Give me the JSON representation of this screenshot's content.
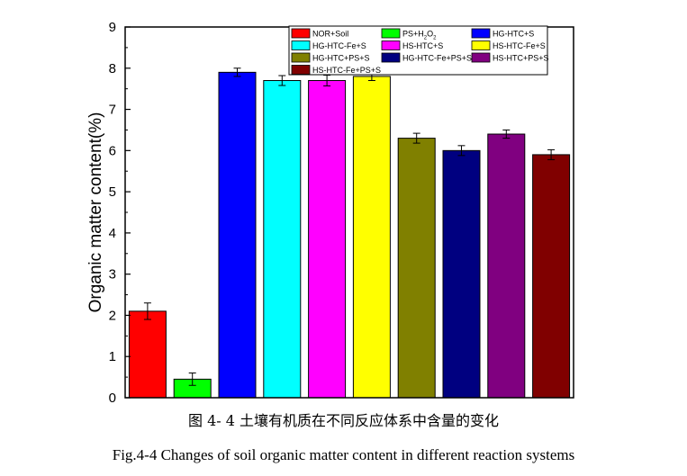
{
  "chart_data": {
    "type": "bar",
    "categories": [
      "NOR+Soil",
      "PS+H2O2",
      "HG-HTC+S",
      "HG-HTC-Fe+S",
      "HS-HTC+S",
      "HS-HTC-Fe+S",
      "HG-HTC+PS+S",
      "HG-HTC-Fe+PS+S",
      "HS-HTC+PS+S",
      "HS-HTC-Fe+PS+S"
    ],
    "values": [
      2.1,
      0.45,
      7.9,
      7.7,
      7.7,
      7.8,
      6.3,
      6.0,
      6.4,
      5.9
    ],
    "errors": [
      0.2,
      0.15,
      0.1,
      0.12,
      0.13,
      0.1,
      0.12,
      0.12,
      0.1,
      0.12
    ],
    "colors": [
      "#ff0000",
      "#00ff00",
      "#0000ff",
      "#00ffff",
      "#ff00ff",
      "#ffff00",
      "#808000",
      "#000080",
      "#800080",
      "#800000"
    ],
    "ylabel": "Organic matter content(%)",
    "xlabel": "",
    "ylim": [
      0,
      9
    ],
    "yticks": [
      0,
      1,
      2,
      3,
      4,
      5,
      6,
      7,
      8,
      9
    ],
    "legend_position": "top-right",
    "grid": false
  },
  "captions": {
    "chinese": "图 4- 4 土壤有机质在不同反应体系中含量的变化",
    "english": "Fig.4-4 Changes of soil organic matter content in different reaction systems"
  }
}
